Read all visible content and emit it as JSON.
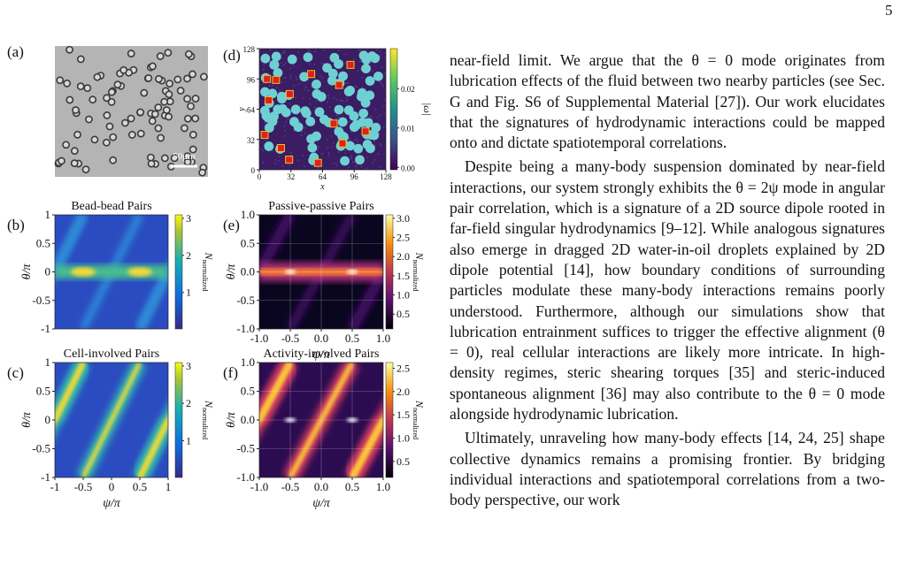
{
  "page_number": "5",
  "figure": {
    "panels": [
      {
        "label": "(a)",
        "scale_bar": "50μm"
      },
      {
        "label": "(d)",
        "x_label": "x",
        "y_label": "y",
        "x_ticks": [
          "0",
          "32",
          "64",
          "96",
          "128"
        ],
        "y_ticks": [
          "128",
          "96",
          "64",
          "32",
          "0"
        ],
        "colorbar_ticks": [
          "0.02",
          "0.01",
          "0.00"
        ],
        "colorbar_label": "|ω|"
      },
      {
        "label": "(b)",
        "title": "Bead-bead Pairs",
        "y_label": "θ/π",
        "y_ticks": [
          "1",
          "0.5",
          "0",
          "-0.5",
          "-1"
        ],
        "colorbar_ticks": [
          "3",
          "2",
          "1"
        ],
        "colorbar_label": "N",
        "colorbar_label_sub": "normalized"
      },
      {
        "label": "(e)",
        "title": "Passive-passive Pairs",
        "y_label": "θ/π",
        "y_ticks": [
          "1.0",
          "0.5",
          "0.0",
          "-0.5",
          "-1.0"
        ],
        "x_ticks": [
          "-1.0",
          "-0.5",
          "0.0",
          "0.5",
          "1.0"
        ],
        "x_label": "ψ/π",
        "colorbar_ticks": [
          "3.0",
          "2.5",
          "2.0",
          "1.5",
          "1.0",
          "0.5"
        ],
        "colorbar_label": "N",
        "colorbar_label_sub": "normalized"
      },
      {
        "label": "(c)",
        "title": "Cell-involved Pairs",
        "y_label": "θ/π",
        "y_ticks": [
          "1",
          "0.5",
          "0",
          "-0.5",
          "-1"
        ],
        "x_ticks": [
          "-1",
          "-0.5",
          "0",
          "0.5",
          "1"
        ],
        "x_label": "ψ/π",
        "colorbar_ticks": [
          "3",
          "2",
          "1"
        ],
        "colorbar_label": "N",
        "colorbar_label_sub": "normalized"
      },
      {
        "label": "(f)",
        "title": "Activity-involved Pairs",
        "y_label": "θ/π",
        "y_ticks": [
          "1.0",
          "0.5",
          "0.0",
          "-0.5",
          "-1.0"
        ],
        "x_ticks": [
          "-1.0",
          "-0.5",
          "0.0",
          "0.5",
          "1.0"
        ],
        "x_label": "ψ/π",
        "colorbar_ticks": [
          "2.5",
          "2.0",
          "1.5",
          "1.0",
          "0.5"
        ],
        "colorbar_label": "N",
        "colorbar_label_sub": "normalized"
      }
    ]
  },
  "text": {
    "paragraphs": [
      "near-field limit. We argue that the θ = 0 mode originates from lubrication effects of the fluid between two nearby particles (see Sec. G and Fig. S6 of Supplemental Material [27]). Our work elucidates that the signatures of hydrodynamic interactions could be mapped onto and dictate spatiotemporal correlations.",
      "Despite being a many-body suspension dominated by near-field interactions, our system strongly exhibits the θ = 2ψ mode in angular pair correlation, which is a signature of a 2D source dipole rooted in far-field singular hydrodynamics [9–12]. While analogous signatures also emerge in dragged 2D water-in-oil droplets explained by 2D dipole potential [14], how boundary conditions of surrounding particles modulate these many-body interactions remains poorly understood. Furthermore, although our simulations show that lubrication entrainment suffices to trigger the effective alignment (θ = 0), real cellular interactions are likely more intricate. In high-density regimes, steric shearing torques [35] and steric-induced spontaneous alignment [36] may also contribute to the θ = 0 mode alongside hydrodynamic lubrication.",
      "Ultimately, unraveling how many-body effects [14, 24, 25] shape collective dynamics remains a promising frontier. By bridging individual interactions and spatiotemporal correlations from a two-body perspective, our work"
    ]
  }
}
